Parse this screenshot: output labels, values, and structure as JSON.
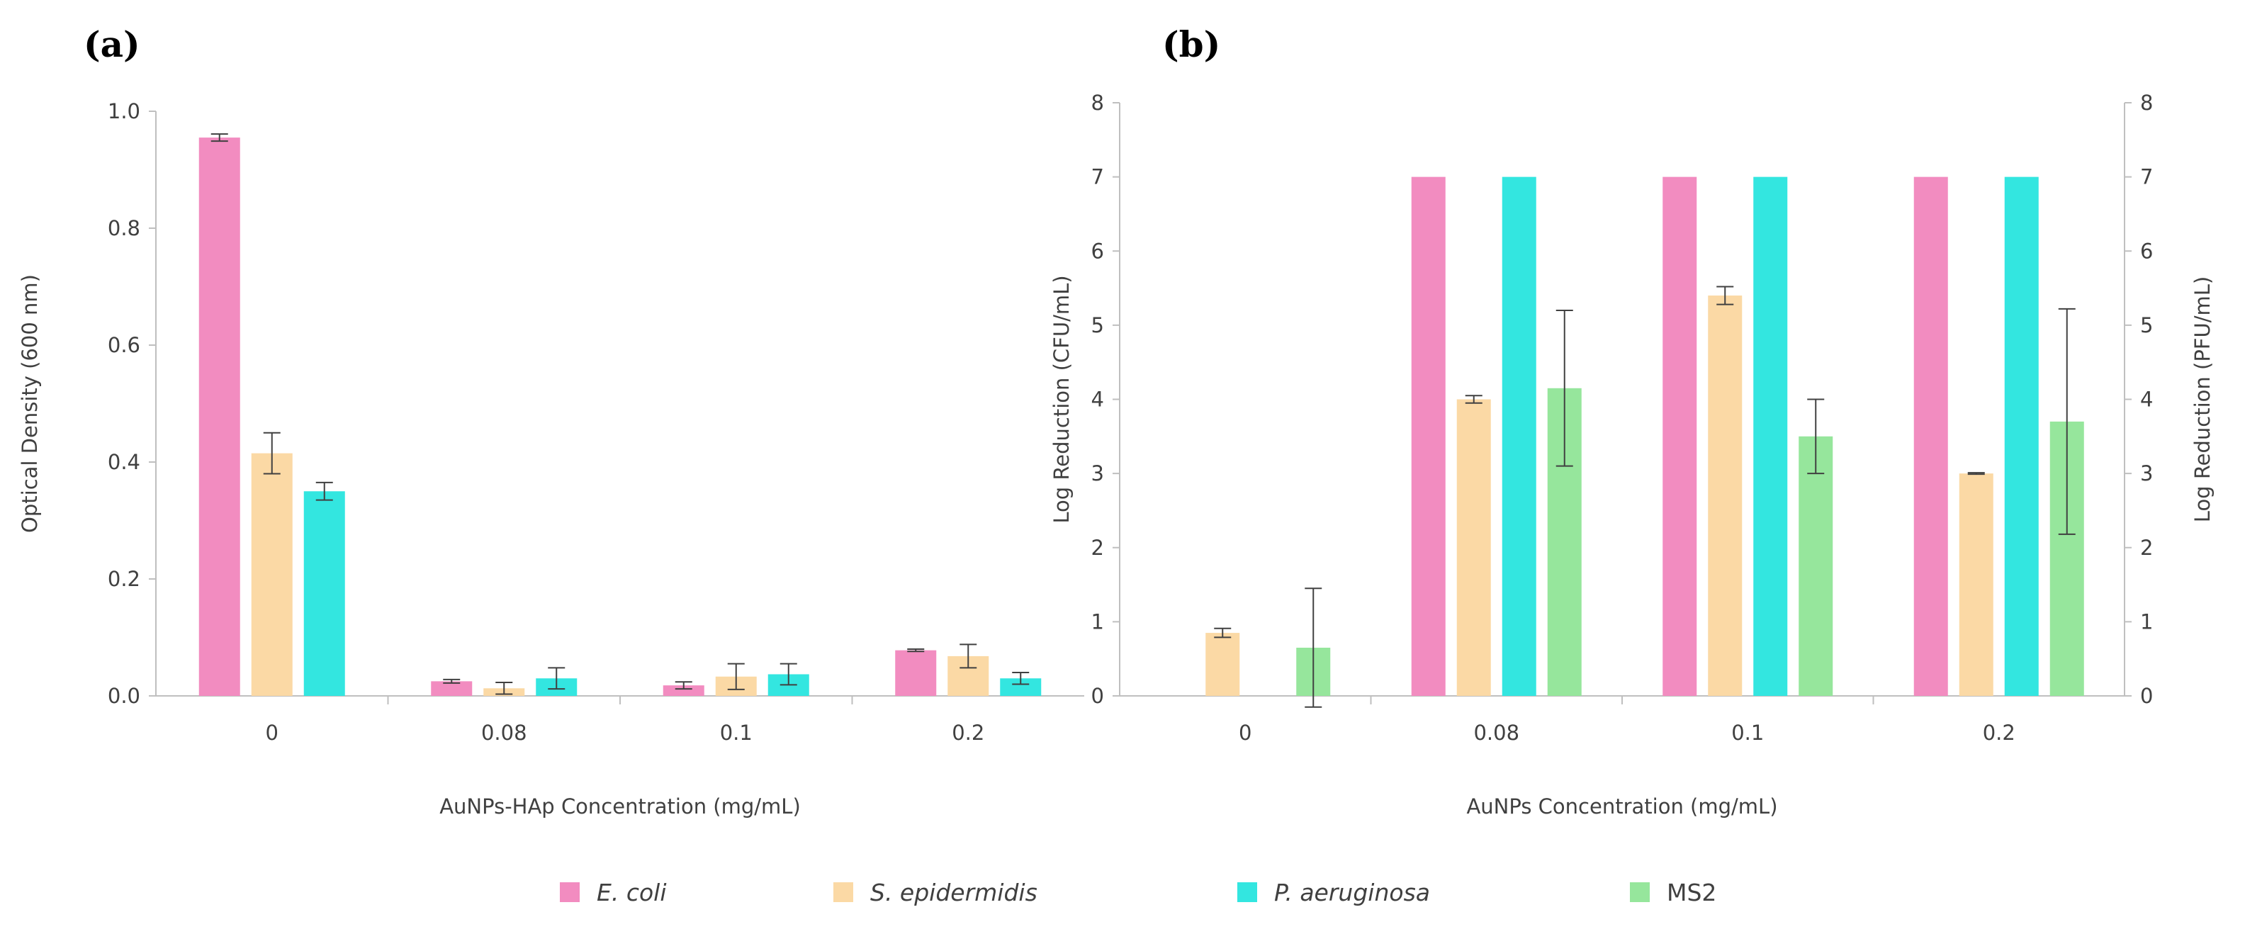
{
  "colors": {
    "E. coli": "#f28cc0",
    "S. epidermidis": "#fbd9a5",
    "P. aeruginosa": "#33e6e0",
    "MS2": "#96e69c",
    "axis": "#bfbfbf",
    "error": "#404040"
  },
  "chart_data": [
    {
      "panel": "(a)",
      "type": "bar",
      "categories": [
        "0",
        "0.08",
        "0.1",
        "0.2"
      ],
      "xlabel": "AuNPs-HAp Concentration (mg/mL)",
      "ylabel": "Optical Density (600 nm)",
      "ylim": [
        0,
        1.0
      ],
      "yticks": [
        "0.0",
        "0.2",
        "0.4",
        "0.6",
        "0.8",
        "1.0"
      ],
      "grid": false,
      "series": [
        {
          "name": "E. coli",
          "values": [
            0.955,
            0.025,
            0.018,
            0.078
          ],
          "errors": [
            0.006,
            0.003,
            0.006,
            0.002
          ]
        },
        {
          "name": "S. epidermidis",
          "values": [
            0.415,
            0.013,
            0.033,
            0.068
          ],
          "errors": [
            0.035,
            0.01,
            0.022,
            0.02
          ]
        },
        {
          "name": "P. aeruginosa",
          "values": [
            0.35,
            0.03,
            0.037,
            0.03
          ],
          "errors": [
            0.015,
            0.018,
            0.018,
            0.01
          ]
        }
      ]
    },
    {
      "panel": "(b)",
      "type": "bar",
      "categories": [
        "0",
        "0.08",
        "0.1",
        "0.2"
      ],
      "xlabel": "AuNPs Concentration (mg/mL)",
      "ylabel": "Log Reduction (CFU/mL)",
      "y2label": "Log Reduction (PFU/mL)",
      "ylim": [
        0,
        8
      ],
      "yticks": [
        "0",
        "1",
        "2",
        "3",
        "4",
        "5",
        "6",
        "7",
        "8"
      ],
      "grid": false,
      "series": [
        {
          "name": "E. coli",
          "values": [
            0,
            7,
            7,
            7
          ],
          "errors": [
            0,
            0,
            0,
            0
          ]
        },
        {
          "name": "S. epidermidis",
          "values": [
            0.85,
            4.0,
            5.4,
            3.0
          ],
          "errors": [
            0.06,
            0.05,
            0.12,
            0.01
          ]
        },
        {
          "name": "P. aeruginosa",
          "values": [
            0,
            7,
            7,
            7
          ],
          "errors": [
            0,
            0,
            0,
            0
          ]
        },
        {
          "name": "MS2",
          "values": [
            0.65,
            4.15,
            3.5,
            3.7
          ],
          "errors": [
            0.8,
            1.05,
            0.5,
            1.52
          ]
        }
      ]
    }
  ],
  "legend": [
    {
      "name": "E. coli",
      "label": "E. coli",
      "italic": true
    },
    {
      "name": "S. epidermidis",
      "label": "S. epidermidis",
      "italic": true
    },
    {
      "name": "P. aeruginosa",
      "label": "P. aeruginosa",
      "italic": true
    },
    {
      "name": "MS2",
      "label": "MS2",
      "italic": false
    }
  ]
}
